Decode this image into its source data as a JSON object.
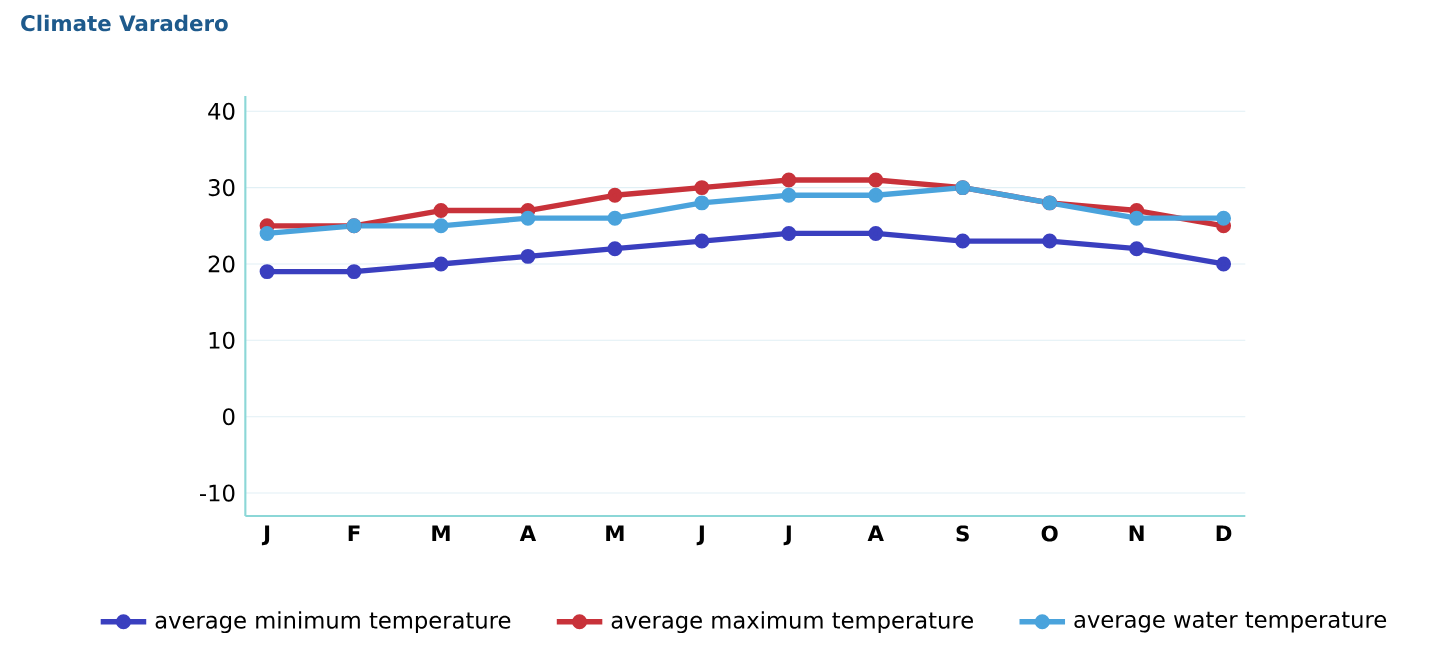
{
  "chart_data": {
    "type": "line",
    "title": "Climate Varadero",
    "categories": [
      "J",
      "F",
      "M",
      "A",
      "M",
      "J",
      "J",
      "A",
      "S",
      "O",
      "N",
      "D"
    ],
    "series": [
      {
        "name": "average minimum temperature",
        "color": "#3a3fbf",
        "values": [
          19,
          19,
          20,
          21,
          22,
          23,
          24,
          24,
          23,
          23,
          22,
          20
        ]
      },
      {
        "name": "average maximum temperature",
        "color": "#c8323a",
        "values": [
          25,
          25,
          27,
          27,
          29,
          30,
          31,
          31,
          30,
          28,
          27,
          25
        ]
      },
      {
        "name": "average water temperature",
        "color": "#4aa3dc",
        "values": [
          24,
          25,
          25,
          26,
          26,
          28,
          29,
          29,
          30,
          28,
          26,
          26
        ]
      }
    ],
    "ylim": [
      -13,
      42
    ],
    "yticks": [
      -10,
      0,
      10,
      20,
      30,
      40
    ],
    "grid": "y",
    "legend": "bottom",
    "marker": "circle",
    "line_style": "solid"
  }
}
